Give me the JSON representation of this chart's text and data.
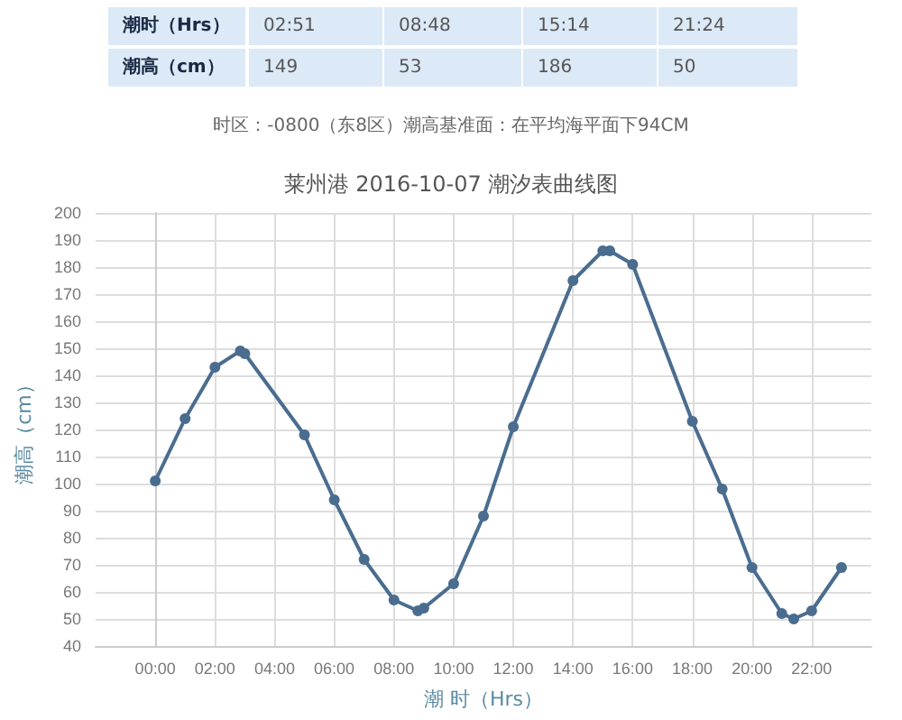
{
  "chart_data": {
    "type": "line",
    "title": "莱州港 2016-10-07 潮汐表曲线图",
    "xlabel": "潮 时（Hrs）",
    "ylabel": "潮高（cm）",
    "annotations": [
      "潮时（Hrs）",
      "02:51",
      "08:48",
      "15:14",
      "21:24",
      "潮高（cm）",
      "149",
      "53",
      "186",
      "50",
      "时区：-0800（东8区）潮高基准面：在平均海平面下94CM"
    ],
    "x": [
      0,
      1,
      2,
      2.85,
      3,
      4,
      5,
      6,
      7,
      8,
      8.8,
      9,
      10,
      11,
      12,
      13,
      14,
      15,
      15.233,
      16,
      17,
      18,
      19,
      20,
      21,
      21.4,
      22,
      23
    ],
    "series": [
      {
        "color": "#4a6d8f",
        "values": [
          101,
          124,
          143,
          149,
          148,
          null,
          118,
          94,
          72,
          57,
          53,
          54,
          63,
          88,
          121,
          null,
          175,
          186,
          186,
          181,
          null,
          123,
          98,
          69,
          52,
          50,
          53,
          69
        ]
      }
    ],
    "xlim": [
      -2,
      24
    ],
    "xticks": [
      {
        "value": 0,
        "label": "00:00"
      },
      {
        "value": 2,
        "label": "02:00"
      },
      {
        "value": 4,
        "label": "04:00"
      },
      {
        "value": 6,
        "label": "06:00"
      },
      {
        "value": 8,
        "label": "08:00"
      },
      {
        "value": 10,
        "label": "10:00"
      },
      {
        "value": 12,
        "label": "12:00"
      },
      {
        "value": 14,
        "label": "14:00"
      },
      {
        "value": 16,
        "label": "16:00"
      },
      {
        "value": 18,
        "label": "18:00"
      },
      {
        "value": 20,
        "label": "20:00"
      },
      {
        "value": 22,
        "label": "22:00"
      }
    ],
    "ylim": [
      40,
      200
    ],
    "yticks": [
      40,
      50,
      60,
      70,
      80,
      90,
      100,
      110,
      120,
      130,
      140,
      150,
      160,
      170,
      180,
      190,
      200
    ],
    "grid": true,
    "marker": "circle",
    "line_style": "solid"
  }
}
